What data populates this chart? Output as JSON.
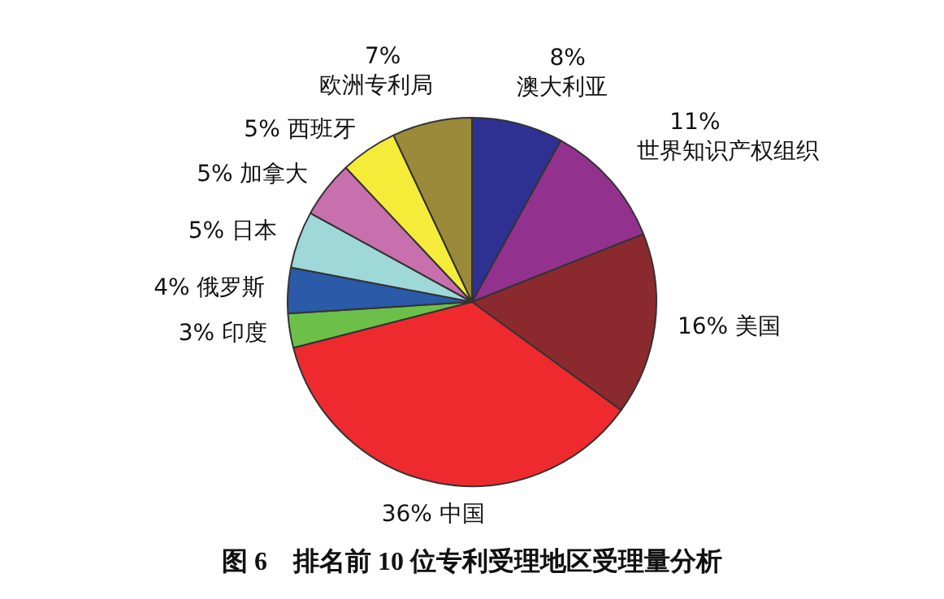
{
  "chart_data": {
    "type": "pie",
    "title": "图 6　排名前 10 位专利受理地区受理量分析",
    "categories": [
      "澳大利亚",
      "世界知识产权组织",
      "美国",
      "中国",
      "印度",
      "俄罗斯",
      "日本",
      "加拿大",
      "西班牙",
      "欧洲专利局"
    ],
    "values": [
      8,
      11,
      16,
      36,
      3,
      4,
      5,
      5,
      5,
      7
    ],
    "value_labels": [
      "8%",
      "11%",
      "16%",
      "36%",
      "3%",
      "4%",
      "5%",
      "5%",
      "5%",
      "7%"
    ],
    "colors": [
      "#2e3192",
      "#93318f",
      "#8b2a2e",
      "#ee2a2e",
      "#6cc04a",
      "#2a5aa8",
      "#9ed8d8",
      "#c86fae",
      "#f5ec3a",
      "#9a8a3a"
    ],
    "legend": false
  }
}
